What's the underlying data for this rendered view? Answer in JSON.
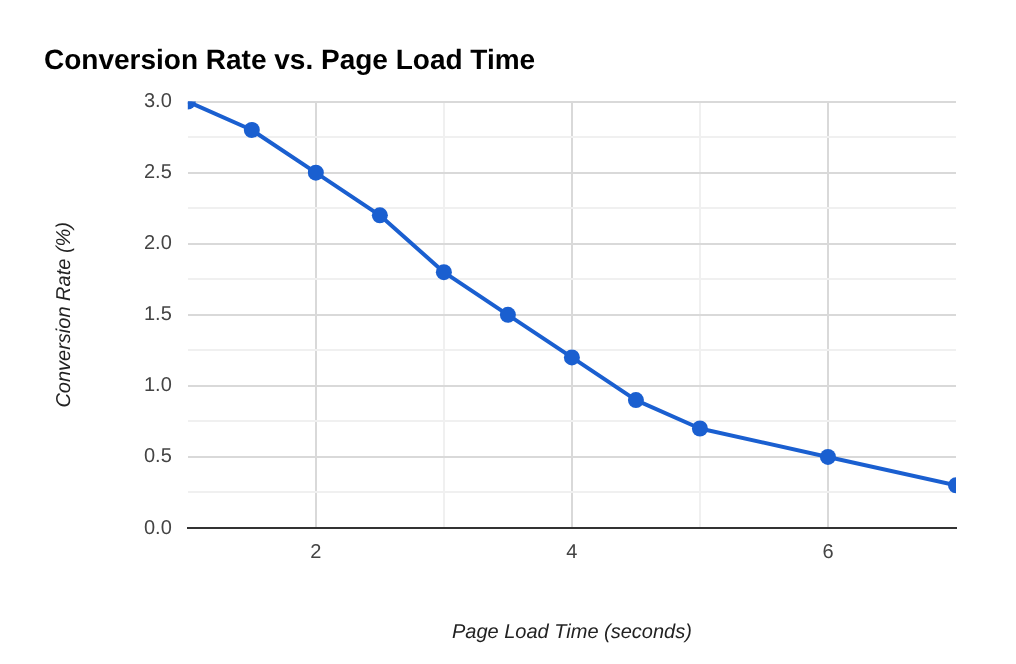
{
  "chart_data": {
    "type": "line",
    "title": "Conversion Rate vs. Page Load Time",
    "xlabel": "Page Load Time (seconds)",
    "ylabel": "Conversion Rate (%)",
    "x": [
      1,
      1.5,
      2,
      2.5,
      3,
      3.5,
      4,
      4.5,
      5,
      6,
      7
    ],
    "series": [
      {
        "color": "#1a5fd0",
        "values": [
          3.0,
          2.8,
          2.5,
          2.2,
          1.8,
          1.5,
          1.2,
          0.9,
          0.7,
          0.5,
          0.3
        ]
      }
    ],
    "xlim": [
      1,
      7
    ],
    "xticks": [
      2,
      {
        "value": 3,
        "label": null
      },
      4,
      {
        "value": 5,
        "label": null
      },
      6
    ],
    "ylim": [
      0,
      3
    ],
    "yticks": [
      {
        "value": 0,
        "label": "0.0"
      },
      {
        "value": 0.25,
        "label": null
      },
      {
        "value": 0.5,
        "label": "0.5"
      },
      {
        "value": 0.75,
        "label": null
      },
      {
        "value": 1,
        "label": "1.0"
      },
      {
        "value": 1.25,
        "label": null
      },
      {
        "value": 1.5,
        "label": "1.5"
      },
      {
        "value": 1.75,
        "label": null
      },
      {
        "value": 2,
        "label": "2.0"
      },
      {
        "value": 2.25,
        "label": null
      },
      {
        "value": 2.5,
        "label": "2.5"
      },
      {
        "value": 2.75,
        "label": null
      },
      {
        "value": 3,
        "label": "3.0"
      }
    ],
    "grid": true,
    "legend": false,
    "marker": "circle",
    "line_style": "solid"
  }
}
